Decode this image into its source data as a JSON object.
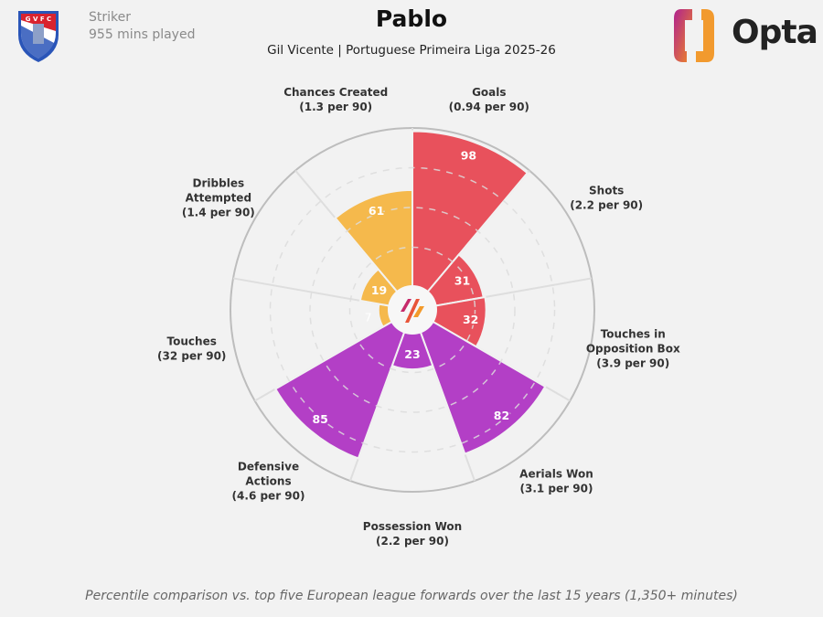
{
  "header": {
    "title": "Pablo",
    "subtitle": "Gil Vicente | Portuguese Primeira Liga 2025-26",
    "position": "Striker",
    "minutes": "955 mins played",
    "brand": "Opta",
    "crest_text": "G V F C"
  },
  "footer": "Percentile comparison vs. top five European league forwards over the last 15 years (1,350+ minutes)",
  "chart_data": {
    "type": "pie",
    "subtype": "polar-area percentile (pizza) chart",
    "rlim": [
      0,
      100
    ],
    "grid": true,
    "categories": [
      {
        "name": "Goals",
        "sub": "(0.94 per 90)",
        "value": 98,
        "color": "#e8515c"
      },
      {
        "name": "Shots",
        "sub": "(2.2 per 90)",
        "value": 31,
        "color": "#e8515c"
      },
      {
        "name": "Touches in Opposition Box",
        "name_lines": [
          "Touches in",
          "Opposition Box"
        ],
        "sub": "(3.9 per 90)",
        "value": 32,
        "color": "#e8515c"
      },
      {
        "name": "Aerials Won",
        "sub": "(3.1 per 90)",
        "value": 82,
        "color": "#b33fc6"
      },
      {
        "name": "Possession Won",
        "sub": "(2.2 per 90)",
        "value": 23,
        "color": "#b33fc6"
      },
      {
        "name": "Defensive Actions",
        "name_lines": [
          "Defensive",
          "Actions"
        ],
        "sub": "(4.6 per 90)",
        "value": 85,
        "color": "#b33fc6"
      },
      {
        "name": "Touches",
        "sub": "(32 per 90)",
        "value": 7,
        "color": "#f5b94c"
      },
      {
        "name": "Dribbles Attempted",
        "name_lines": [
          "Dribbles",
          "Attempted"
        ],
        "sub": "(1.4 per 90)",
        "value": 19,
        "color": "#f5b94c"
      },
      {
        "name": "Chances Created",
        "sub": "(1.3 per 90)",
        "value": 61,
        "color": "#f5b94c"
      }
    ]
  }
}
